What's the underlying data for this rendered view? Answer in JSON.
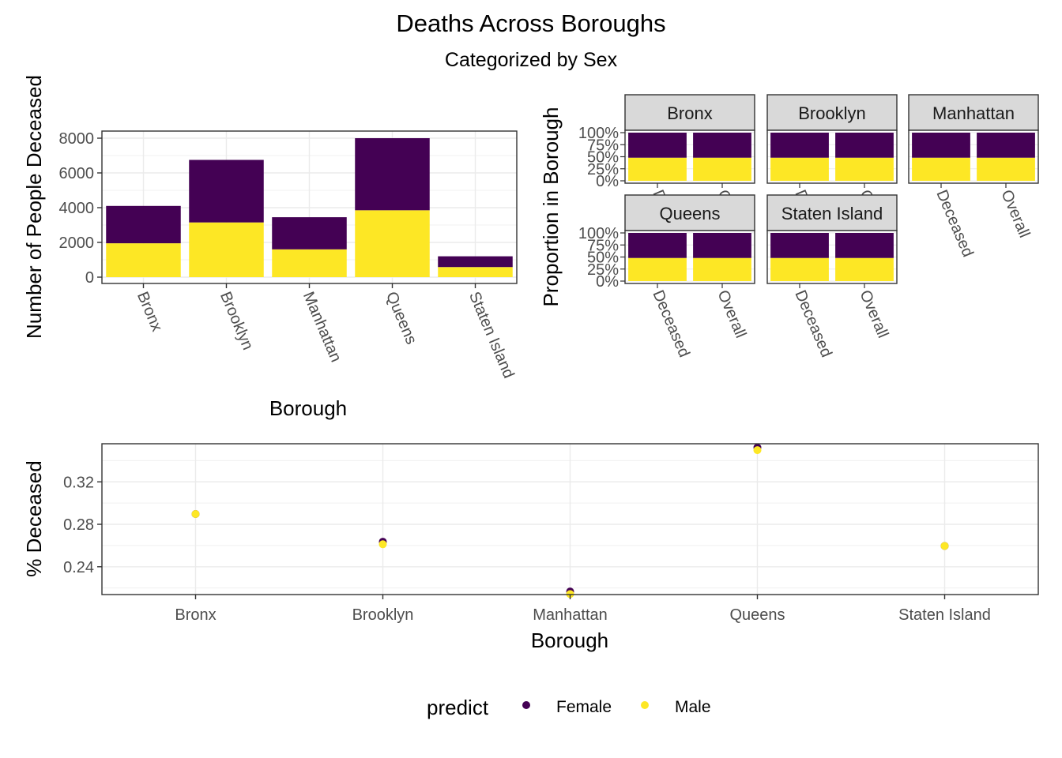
{
  "title": "Deaths Across Boroughs",
  "subtitle": "Categorized by Sex",
  "legend": {
    "title": "predict",
    "entries": [
      {
        "name": "Female",
        "color": "#440154"
      },
      {
        "name": "Male",
        "color": "#FDE725"
      }
    ]
  },
  "chart_data": [
    {
      "type": "bar",
      "stacked": true,
      "xlabel": "Borough",
      "ylabel": "Number of People Deceased",
      "ylim": [
        0,
        8000
      ],
      "yticks": [
        0,
        2000,
        4000,
        6000,
        8000
      ],
      "ytick_labels": [
        "0",
        "2000",
        "4000",
        "6000",
        "8000"
      ],
      "categories": [
        "Bronx",
        "Brooklyn",
        "Manhattan",
        "Queens",
        "Staten Island"
      ],
      "series": [
        {
          "name": "Male",
          "color": "#FDE725",
          "values": [
            1950,
            3150,
            1600,
            3850,
            580
          ]
        },
        {
          "name": "Female",
          "color": "#440154",
          "values": [
            2150,
            3600,
            1850,
            4150,
            620
          ]
        }
      ],
      "grid": true
    },
    {
      "type": "bar",
      "stacked": true,
      "faceted": true,
      "ylabel": "Proportion in Borough",
      "ylim": [
        0,
        1
      ],
      "ytick_labels": [
        "0%",
        "25%",
        "50%",
        "75%",
        "100%"
      ],
      "categories": [
        "Deceased",
        "Overall"
      ],
      "facets": [
        {
          "name": "Bronx",
          "male": [
            0.48,
            0.48
          ],
          "female": [
            0.52,
            0.52
          ]
        },
        {
          "name": "Brooklyn",
          "male": [
            0.48,
            0.48
          ],
          "female": [
            0.52,
            0.52
          ]
        },
        {
          "name": "Manhattan",
          "male": [
            0.48,
            0.48
          ],
          "female": [
            0.52,
            0.52
          ]
        },
        {
          "name": "Queens",
          "male": [
            0.48,
            0.48
          ],
          "female": [
            0.52,
            0.52
          ]
        },
        {
          "name": "Staten Island",
          "male": [
            0.48,
            0.48
          ],
          "female": [
            0.52,
            0.52
          ]
        }
      ],
      "grid": true
    },
    {
      "type": "scatter",
      "xlabel": "Borough",
      "ylabel": "% Deceased",
      "ylim": [
        0.2138,
        0.3559
      ],
      "yticks": [
        0.24,
        0.28,
        0.32
      ],
      "ytick_labels": [
        "0.24",
        "0.28",
        "0.32"
      ],
      "categories": [
        "Bronx",
        "Brooklyn",
        "Manhattan",
        "Queens",
        "Staten Island"
      ],
      "series": [
        {
          "name": "Female",
          "color": "#440154",
          "values": [
            0.2897,
            0.2636,
            0.2167,
            0.3523,
            0.2596
          ]
        },
        {
          "name": "Male",
          "color": "#FDE725",
          "values": [
            0.2897,
            0.2612,
            0.2143,
            0.3499,
            0.2596
          ]
        }
      ],
      "grid": true
    }
  ]
}
